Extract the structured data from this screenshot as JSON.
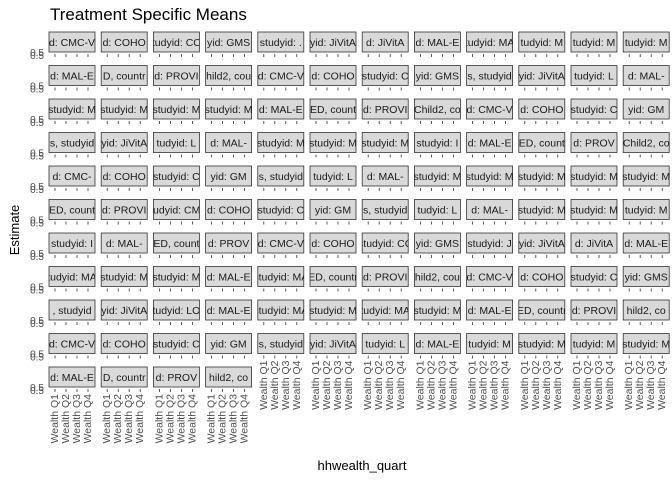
{
  "chart_data": {
    "type": "scatter",
    "title": "Treatment Specific Means",
    "xlabel": "hhwealth_quart",
    "ylabel": "Estimate",
    "facet_grid": {
      "rows": 11,
      "cols": 12
    },
    "y_tick_labels": [
      "0.5",
      "0.5"
    ],
    "x_categories": [
      "Wealth Q1",
      "Wealth Q2",
      "Wealth Q3",
      "Wealth Q4"
    ],
    "panel_strips": [
      [
        "d: CMC-V",
        "d: COHO",
        "tudyid: CC",
        "yid: GMS",
        "studyid: .",
        "yid: JiVitA",
        "d: JiVitA",
        "d: MAL-E",
        "tudyid: MA",
        "tudyid: M",
        "tudyid: M",
        "tudyid: M"
      ],
      [
        "d: MAL-E",
        "D, countr",
        "d: PROVI",
        "hild2, cou",
        "d: CMC-V",
        "d: COHO",
        "studyid: C",
        "yid: GMS",
        "s, studyid",
        "yid: JiVitA",
        "tudyid: L",
        "d: MAL-"
      ],
      [
        "studyid: M",
        "studyid: M",
        "studyid: M",
        "studyid: M",
        "d: MAL-E",
        "ED, count",
        "d: PROVI",
        "Child2, co",
        "d: CMC-V",
        "d: COHO",
        "studyid: C",
        "yid: GM"
      ],
      [
        "s, studyid",
        "yid: JiVitA",
        "tudyid: L",
        "d: MAL-",
        "studyid: M",
        "studyid: M",
        "studyid: M",
        "studyid: I",
        "d: MAL-E",
        "ED, count",
        "d: PROV",
        "Child2, co"
      ],
      [
        "d: CMC-",
        "d: COHO",
        "studyid: C",
        "yid: GM",
        "s, studyid",
        "tudyid: L",
        "d: MAL-",
        "studyid: M",
        "studyid: M",
        "studyid: M",
        "studyid: M",
        "studyid: M"
      ],
      [
        "ED, count",
        "d: PROVI",
        "studyid: CMC",
        "d: COHO",
        "studyid: C",
        "yid: GM",
        "s, studyid",
        "tudyid: L",
        "d: MAL-",
        "studyid: M",
        "studyid: M",
        "tudyid: M"
      ],
      [
        "studyid: I",
        "d: MAL-",
        "ED, count",
        "d: PROV",
        "d: CMC-V",
        "d: COHO",
        "studyid: CC",
        "yid: GMS",
        "studyid: J",
        "yid: JiVitA",
        "d: JiVitA",
        "d: MAL-E"
      ],
      [
        "tudyid: MA",
        "studyid: M",
        "studyid: M",
        "d: MAL-E",
        "studyid: MA",
        "ED, countr",
        "d: PROVI",
        "hild2, cou",
        "d: CMC-V",
        "d: COHO",
        "studyid: C",
        "yid: GMS"
      ],
      [
        ", studyid",
        "yid: JiVitA",
        "tudyid: LO",
        "d: MAL-E",
        "studyid: MA",
        "studyid: M",
        "tudyid: MA",
        "studyid: M",
        "d: MAL-E",
        "ED, countr",
        "d: PROVI",
        "hild2, co"
      ],
      [
        "d: CMC-V",
        "d: COHO",
        "studyid: C",
        "yid: GM",
        "s, studyid",
        "yid: JiVitA",
        "tudyid: L",
        "d: MAL-E",
        "tudyid: M",
        "studyid: M",
        "tudyid: M",
        "studyid: M"
      ],
      [
        "d: MAL-E",
        "D, countr",
        "d: PROV",
        "hild2, co",
        "",
        "",
        "",
        "",
        "",
        "",
        "",
        ""
      ]
    ]
  }
}
